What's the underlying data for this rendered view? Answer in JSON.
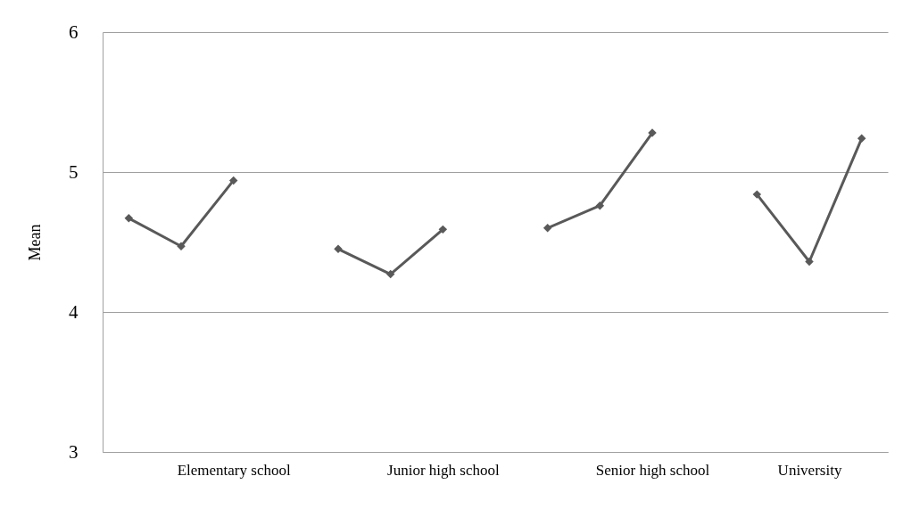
{
  "chart_data": {
    "type": "line",
    "ylabel": "Mean",
    "categories": [
      null,
      null,
      "Elementary school",
      null,
      null,
      null,
      "Junior high school",
      null,
      null,
      null,
      "Senior high school",
      null,
      null,
      "University",
      null
    ],
    "series": [
      {
        "color": "#595959",
        "values": [
          4.67,
          4.47,
          4.94,
          null,
          4.45,
          4.27,
          4.59,
          null,
          4.6,
          4.76,
          5.28,
          null,
          4.84,
          4.36,
          5.24
        ]
      }
    ],
    "ylim": [
      3,
      6
    ],
    "yticks": [
      3,
      4,
      5,
      6
    ],
    "grid": "y",
    "marker": "diamond",
    "line_style": "solid"
  }
}
